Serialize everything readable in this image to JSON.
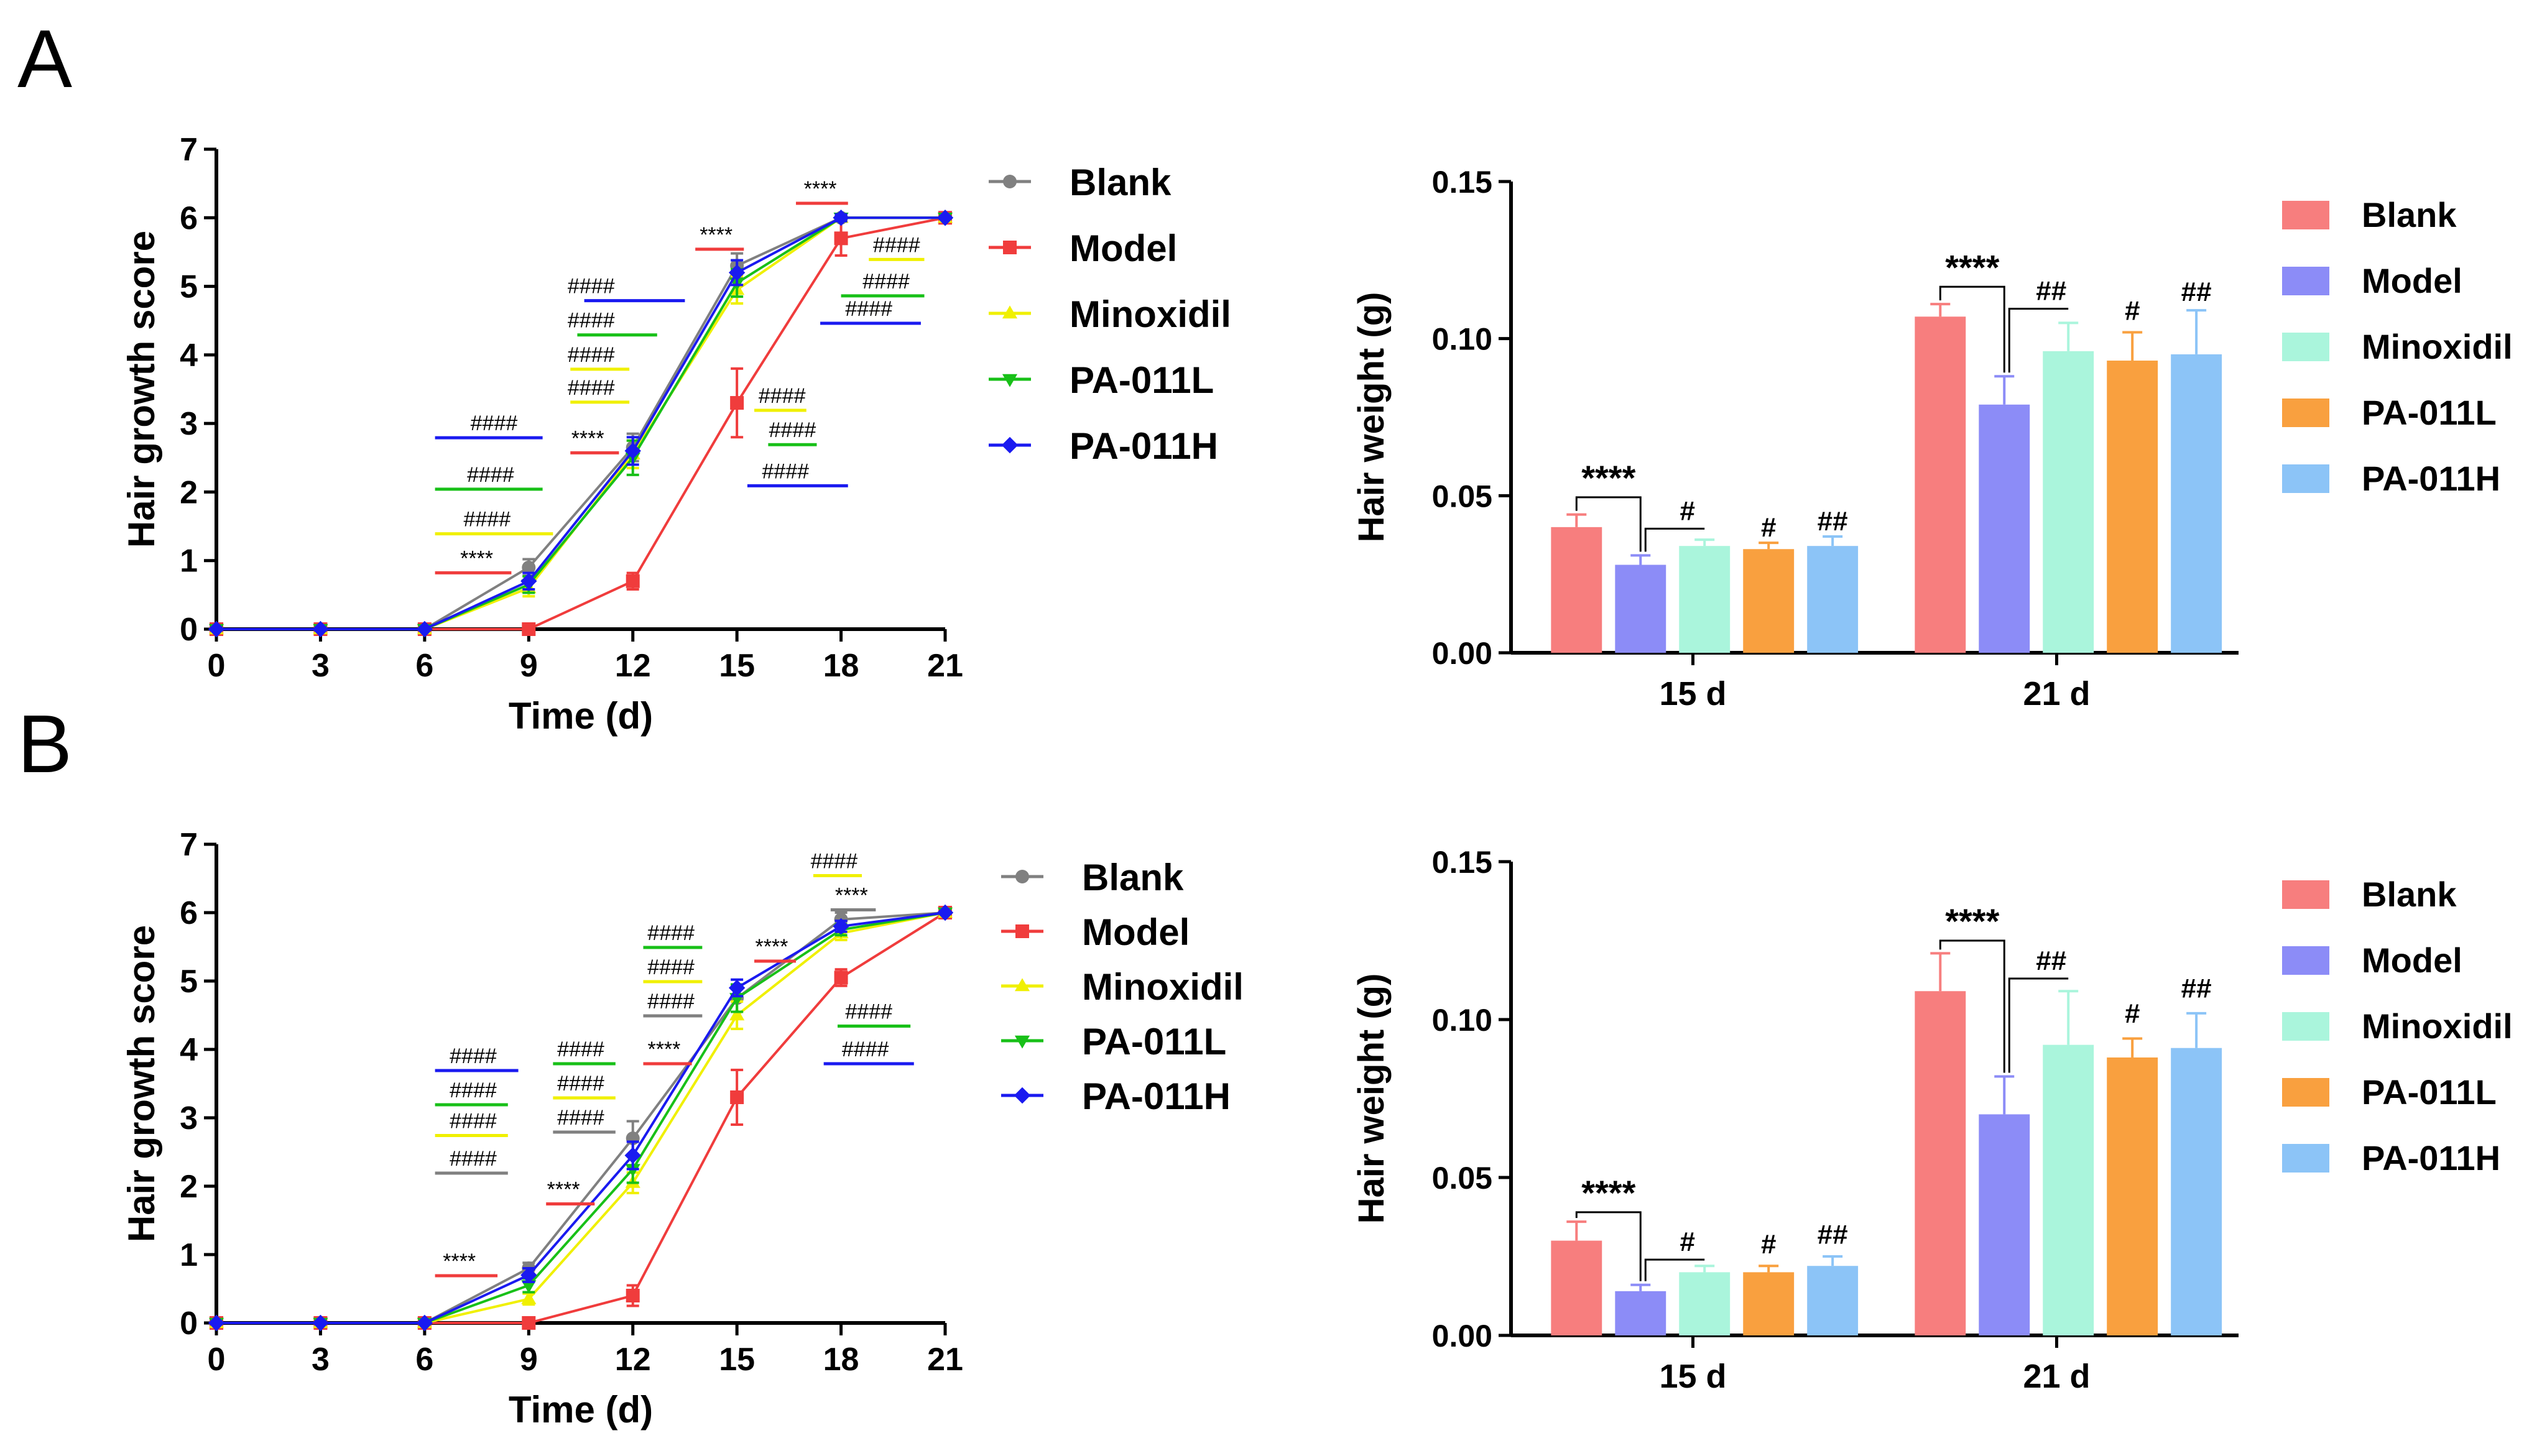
{
  "panel_labels": [
    "A",
    "B"
  ],
  "colors": {
    "Blank_line": "#808080",
    "Model_line": "#f03c3c",
    "Minoxidil_line": "#f0f000",
    "PA-011L_line": "#18c018",
    "PA-011H_line": "#1a1af0",
    "Blank_bar": "#f77e7e",
    "Model_bar": "#8c8cf7",
    "Minoxidil_bar": "#aaf5dc",
    "PA-011L_bar": "#f9a03f",
    "PA-011H_bar": "#8cc4f7"
  },
  "chart_data": [
    {
      "id": "A-line",
      "type": "line",
      "title": "",
      "xlabel": "Time (d)",
      "ylabel": "Hair growth score",
      "x": [
        0,
        3,
        6,
        9,
        12,
        15,
        18,
        21
      ],
      "xlim": [
        0,
        21
      ],
      "ylim": [
        0,
        7
      ],
      "yticks": [
        0,
        1,
        2,
        3,
        4,
        5,
        6,
        7
      ],
      "legend": "right",
      "series": [
        {
          "name": "Blank",
          "values": [
            0,
            0,
            0,
            0.9,
            2.65,
            5.3,
            6.0,
            6.0
          ],
          "errors": [
            0,
            0,
            0,
            0.12,
            0.2,
            0.18,
            0.05,
            0
          ]
        },
        {
          "name": "Model",
          "values": [
            0,
            0,
            0,
            0,
            0.7,
            3.3,
            5.7,
            6.0
          ],
          "errors": [
            0,
            0,
            0,
            0,
            0.12,
            0.5,
            0.25,
            0
          ]
        },
        {
          "name": "Minoxidil",
          "values": [
            0,
            0,
            0,
            0.6,
            2.55,
            4.95,
            6.0,
            6.0
          ],
          "errors": [
            0,
            0,
            0,
            0.12,
            0.2,
            0.2,
            0.05,
            0
          ]
        },
        {
          "name": "PA-011L",
          "values": [
            0,
            0,
            0,
            0.65,
            2.5,
            5.05,
            6.0,
            6.0
          ],
          "errors": [
            0,
            0,
            0,
            0.12,
            0.25,
            0.2,
            0.05,
            0
          ]
        },
        {
          "name": "PA-011H",
          "values": [
            0,
            0,
            0,
            0.7,
            2.6,
            5.2,
            6.0,
            6.0
          ],
          "errors": [
            0,
            0,
            0,
            0.12,
            0.2,
            0.18,
            0.05,
            0
          ]
        }
      ],
      "annotations": [
        {
          "text": "****",
          "x": 7.5,
          "y": 0.93,
          "line_x": [
            6.3,
            8.5
          ],
          "color": "Model_line"
        },
        {
          "text": "####",
          "x": 7.8,
          "y": 1.5,
          "line_x": [
            6.3,
            9.7
          ],
          "color": "Minoxidil_line"
        },
        {
          "text": "####",
          "x": 7.9,
          "y": 2.15,
          "line_x": [
            6.3,
            9.4
          ],
          "color": "PA-011L_line"
        },
        {
          "text": "####",
          "x": 8.0,
          "y": 2.9,
          "line_x": [
            6.3,
            9.4
          ],
          "color": "PA-011H_line"
        },
        {
          "text": "****",
          "x": 10.7,
          "y": 2.68,
          "line_x": [
            10.2,
            11.6
          ],
          "color": "Model_line"
        },
        {
          "text": "####",
          "x": 10.8,
          "y": 3.42,
          "line_x": [
            10.2,
            11.9
          ],
          "color": "Minoxidil_line"
        },
        {
          "text": "####",
          "x": 10.8,
          "y": 3.9,
          "line_x": [
            10.2,
            11.9
          ],
          "color": "Minoxidil_line"
        },
        {
          "text": "####",
          "x": 10.8,
          "y": 4.4,
          "line_x": [
            10.4,
            12.7
          ],
          "color": "PA-011L_line"
        },
        {
          "text": "####",
          "x": 10.8,
          "y": 4.9,
          "line_x": [
            10.6,
            13.5
          ],
          "color": "PA-011H_line"
        },
        {
          "text": "****",
          "x": 14.4,
          "y": 5.65,
          "line_x": [
            13.8,
            15.2
          ],
          "color": "Model_line"
        },
        {
          "text": "####",
          "x": 16.3,
          "y": 3.3,
          "line_x": [
            15.5,
            17.0
          ],
          "color": "Minoxidil_line"
        },
        {
          "text": "####",
          "x": 16.6,
          "y": 2.8,
          "line_x": [
            15.9,
            17.3
          ],
          "color": "PA-011L_line"
        },
        {
          "text": "####",
          "x": 16.4,
          "y": 2.2,
          "line_x": [
            15.3,
            18.2
          ],
          "color": "PA-011H_line"
        },
        {
          "text": "****",
          "x": 17.4,
          "y": 6.32,
          "line_x": [
            16.7,
            18.2
          ],
          "color": "Model_line"
        },
        {
          "text": "####",
          "x": 19.6,
          "y": 5.5,
          "line_x": [
            18.8,
            20.4
          ],
          "color": "Minoxidil_line"
        },
        {
          "text": "####",
          "x": 19.3,
          "y": 4.97,
          "line_x": [
            18.0,
            20.4
          ],
          "color": "PA-011L_line"
        },
        {
          "text": "####",
          "x": 18.8,
          "y": 4.57,
          "line_x": [
            17.4,
            20.3
          ],
          "color": "PA-011H_line"
        }
      ]
    },
    {
      "id": "A-bar",
      "type": "bar",
      "title": "",
      "xlabel": "",
      "ylabel": "Hair weight (g)",
      "categories": [
        "15 d",
        "21 d"
      ],
      "ylim": [
        0,
        0.15
      ],
      "yticks": [
        "0.00",
        "0.05",
        "0.10",
        "0.15"
      ],
      "legend": "right",
      "series": [
        {
          "name": "Blank",
          "values": [
            0.04,
            0.107
          ],
          "errors": [
            0.004,
            0.004
          ]
        },
        {
          "name": "Model",
          "values": [
            0.028,
            0.079
          ],
          "errors": [
            0.003,
            0.009
          ]
        },
        {
          "name": "Minoxidil",
          "values": [
            0.034,
            0.096
          ],
          "errors": [
            0.002,
            0.009
          ]
        },
        {
          "name": "PA-011L",
          "values": [
            0.033,
            0.093
          ],
          "errors": [
            0.002,
            0.009
          ]
        },
        {
          "name": "PA-011H",
          "values": [
            0.034,
            0.095
          ],
          "errors": [
            0.003,
            0.014
          ]
        }
      ],
      "annotations": [
        {
          "text": "****",
          "category": 0,
          "from": 0,
          "to": 1,
          "bracket_y": 0.0495
        },
        {
          "text": "#",
          "category": 0,
          "from": 1,
          "to": 2,
          "bracket_y": 0.0395
        },
        {
          "text": "#",
          "category": 0,
          "series": 3,
          "y": 0.037
        },
        {
          "text": "##",
          "category": 0,
          "series": 4,
          "y": 0.039
        },
        {
          "text": "****",
          "category": 1,
          "from": 0,
          "to": 1,
          "bracket_y": 0.1165
        },
        {
          "text": "##",
          "category": 1,
          "from": 1,
          "to": 2,
          "bracket_y": 0.1095
        },
        {
          "text": "#",
          "category": 1,
          "series": 3,
          "y": 0.106
        },
        {
          "text": "##",
          "category": 1,
          "series": 4,
          "y": 0.112
        }
      ]
    },
    {
      "id": "B-line",
      "type": "line",
      "title": "",
      "xlabel": "Time (d)",
      "ylabel": "Hair growth score",
      "x": [
        0,
        3,
        6,
        9,
        12,
        15,
        18,
        21
      ],
      "xlim": [
        0,
        21
      ],
      "ylim": [
        0,
        7
      ],
      "yticks": [
        0,
        1,
        2,
        3,
        4,
        5,
        6,
        7
      ],
      "legend": "right",
      "series": [
        {
          "name": "Blank",
          "values": [
            0,
            0,
            0,
            0.8,
            2.7,
            4.75,
            5.9,
            6.0
          ],
          "errors": [
            0,
            0,
            0,
            0.08,
            0.25,
            0.2,
            0.1,
            0
          ]
        },
        {
          "name": "Model",
          "values": [
            0,
            0,
            0,
            0,
            0.4,
            3.3,
            5.05,
            6.0
          ],
          "errors": [
            0,
            0,
            0,
            0,
            0.15,
            0.4,
            0.12,
            0
          ]
        },
        {
          "name": "Minoxidil",
          "values": [
            0,
            0,
            0,
            0.35,
            2.05,
            4.5,
            5.7,
            6.0
          ],
          "errors": [
            0,
            0,
            0,
            0.08,
            0.15,
            0.2,
            0.1,
            0
          ]
        },
        {
          "name": "PA-011L",
          "values": [
            0,
            0,
            0,
            0.55,
            2.25,
            4.75,
            5.75,
            6.0
          ],
          "errors": [
            0,
            0,
            0,
            0.1,
            0.2,
            0.2,
            0.08,
            0
          ]
        },
        {
          "name": "PA-011H",
          "values": [
            0,
            0,
            0,
            0.7,
            2.45,
            4.9,
            5.8,
            6.0
          ],
          "errors": [
            0,
            0,
            0,
            0.1,
            0.2,
            0.12,
            0.08,
            0
          ]
        }
      ],
      "annotations": [
        {
          "text": "****",
          "x": 7.0,
          "y": 0.8,
          "line_x": [
            6.3,
            8.1
          ],
          "color": "Model_line"
        },
        {
          "text": "####",
          "x": 7.4,
          "y": 2.3,
          "line_x": [
            6.3,
            8.4
          ],
          "color": "Blank_line"
        },
        {
          "text": "####",
          "x": 7.4,
          "y": 2.85,
          "line_x": [
            6.3,
            8.4
          ],
          "color": "Minoxidil_line"
        },
        {
          "text": "####",
          "x": 7.4,
          "y": 3.3,
          "line_x": [
            6.3,
            8.4
          ],
          "color": "PA-011L_line"
        },
        {
          "text": "####",
          "x": 7.4,
          "y": 3.8,
          "line_x": [
            6.3,
            8.7
          ],
          "color": "PA-011H_line"
        },
        {
          "text": "****",
          "x": 10.0,
          "y": 1.85,
          "line_x": [
            9.5,
            10.9
          ],
          "color": "Model_line"
        },
        {
          "text": "####",
          "x": 10.5,
          "y": 2.9,
          "line_x": [
            9.7,
            11.5
          ],
          "color": "Blank_line"
        },
        {
          "text": "####",
          "x": 10.5,
          "y": 3.4,
          "line_x": [
            9.7,
            11.5
          ],
          "color": "Minoxidil_line"
        },
        {
          "text": "####",
          "x": 10.5,
          "y": 3.9,
          "line_x": [
            9.7,
            11.5
          ],
          "color": "PA-011L_line"
        },
        {
          "text": "****",
          "x": 12.9,
          "y": 3.9,
          "line_x": [
            12.3,
            13.7
          ],
          "color": "Model_line"
        },
        {
          "text": "####",
          "x": 13.1,
          "y": 4.6,
          "line_x": [
            12.3,
            14.0
          ],
          "color": "Blank_line"
        },
        {
          "text": "####",
          "x": 13.1,
          "y": 5.1,
          "line_x": [
            12.3,
            14.0
          ],
          "color": "Minoxidil_line"
        },
        {
          "text": "####",
          "x": 13.1,
          "y": 5.6,
          "line_x": [
            12.3,
            14.0
          ],
          "color": "PA-011L_line"
        },
        {
          "text": "****",
          "x": 16.0,
          "y": 5.4,
          "line_x": [
            15.5,
            16.7
          ],
          "color": "Model_line"
        },
        {
          "text": "####",
          "x": 18.7,
          "y": 3.9,
          "line_x": [
            17.5,
            20.1
          ],
          "color": "PA-011H_line"
        },
        {
          "text": "####",
          "x": 18.8,
          "y": 4.45,
          "line_x": [
            17.9,
            20.0
          ],
          "color": "PA-011L_line"
        },
        {
          "text": "****",
          "x": 18.3,
          "y": 6.15,
          "line_x": [
            17.7,
            19.0
          ],
          "color": "Blank_line"
        },
        {
          "text": "####",
          "x": 17.8,
          "y": 6.65,
          "line_x": [
            17.2,
            18.6
          ],
          "color": "Minoxidil_line"
        }
      ]
    },
    {
      "id": "B-bar",
      "type": "bar",
      "title": "",
      "xlabel": "",
      "ylabel": "Hair weight (g)",
      "categories": [
        "15 d",
        "21 d"
      ],
      "ylim": [
        0,
        0.15
      ],
      "yticks": [
        "0.00",
        "0.05",
        "0.10",
        "0.15"
      ],
      "legend": "right",
      "series": [
        {
          "name": "Blank",
          "values": [
            0.03,
            0.109
          ],
          "errors": [
            0.006,
            0.012
          ]
        },
        {
          "name": "Model",
          "values": [
            0.014,
            0.07
          ],
          "errors": [
            0.002,
            0.012
          ]
        },
        {
          "name": "Minoxidil",
          "values": [
            0.02,
            0.092
          ],
          "errors": [
            0.002,
            0.017
          ]
        },
        {
          "name": "PA-011L",
          "values": [
            0.02,
            0.088
          ],
          "errors": [
            0.002,
            0.006
          ]
        },
        {
          "name": "PA-011H",
          "values": [
            0.022,
            0.091
          ],
          "errors": [
            0.003,
            0.011
          ]
        }
      ],
      "annotations": [
        {
          "text": "****",
          "category": 0,
          "from": 0,
          "to": 1,
          "bracket_y": 0.039
        },
        {
          "text": "#",
          "category": 0,
          "from": 1,
          "to": 2,
          "bracket_y": 0.024
        },
        {
          "text": "#",
          "category": 0,
          "series": 3,
          "y": 0.026
        },
        {
          "text": "##",
          "category": 0,
          "series": 4,
          "y": 0.029
        },
        {
          "text": "****",
          "category": 1,
          "from": 0,
          "to": 1,
          "bracket_y": 0.125
        },
        {
          "text": "##",
          "category": 1,
          "from": 1,
          "to": 2,
          "bracket_y": 0.113
        },
        {
          "text": "#",
          "category": 1,
          "series": 3,
          "y": 0.099
        },
        {
          "text": "##",
          "category": 1,
          "series": 4,
          "y": 0.107
        }
      ]
    }
  ]
}
